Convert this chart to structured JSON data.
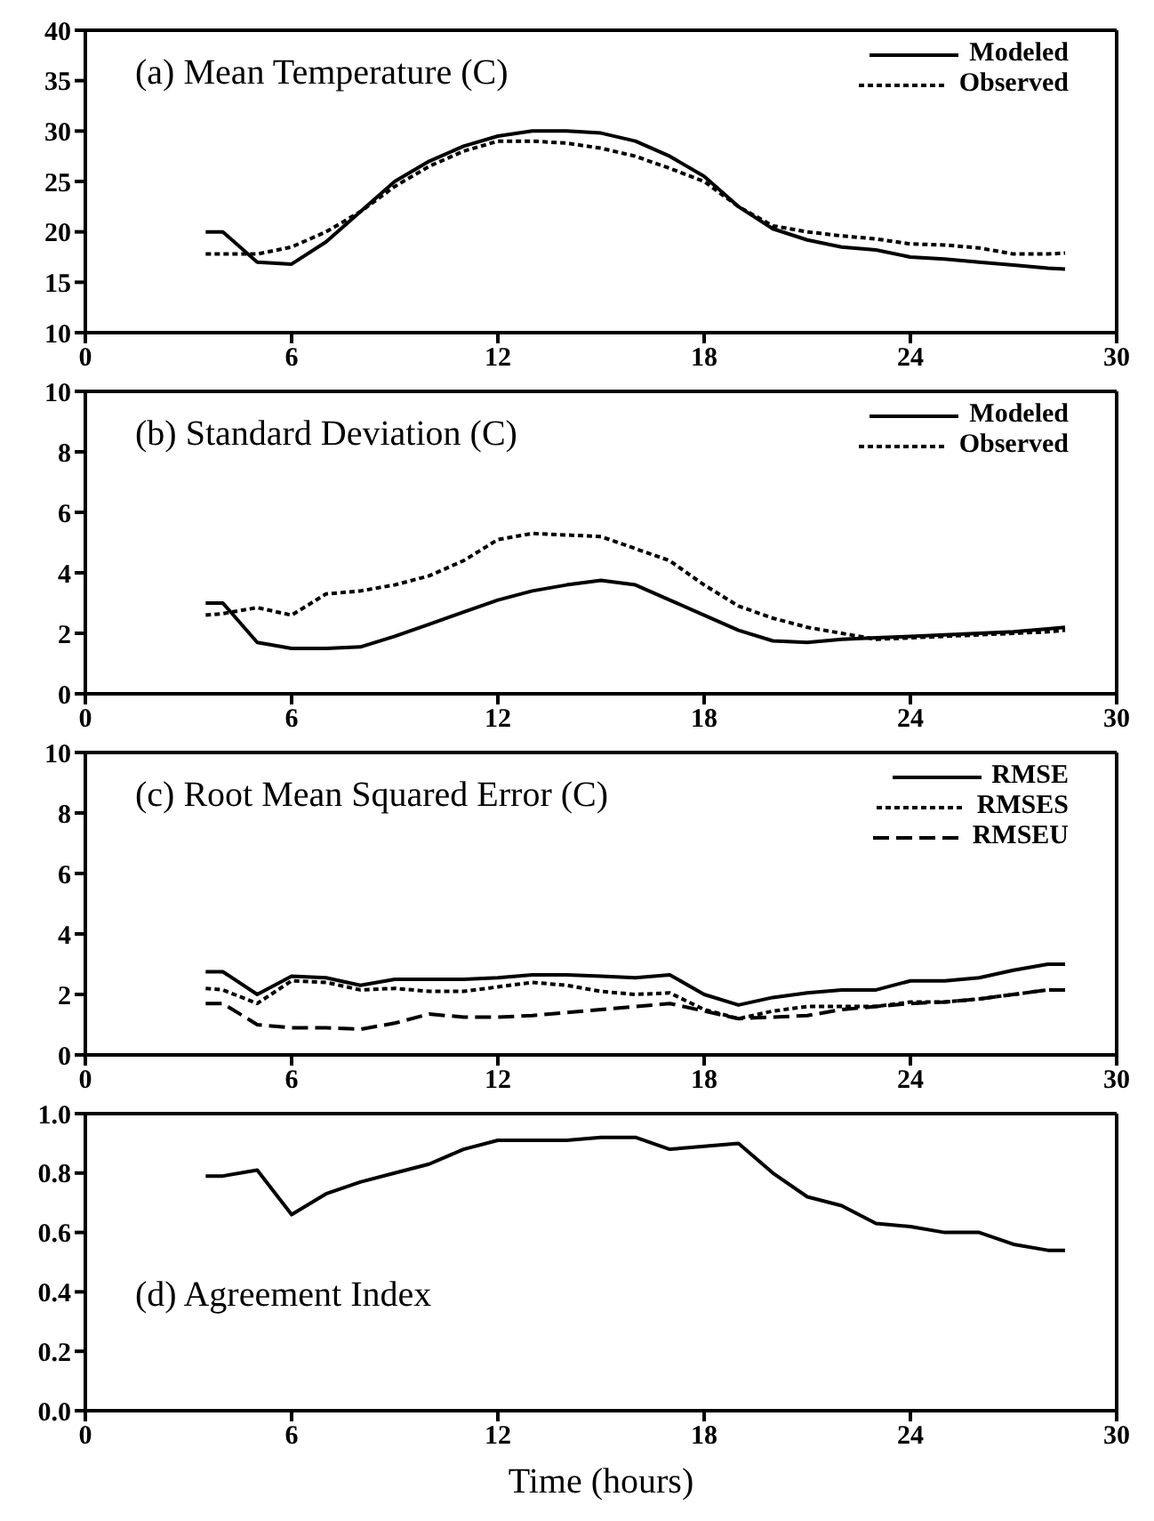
{
  "chart_data": [
    {
      "type": "line",
      "title": "(a) Mean Temperature (C)",
      "x": [
        3.5,
        4,
        5,
        6,
        7,
        8,
        9,
        10,
        11,
        12,
        13,
        14,
        15,
        16,
        17,
        18,
        19,
        20,
        21,
        22,
        23,
        24,
        25,
        26,
        27,
        28,
        28.5
      ],
      "xlim": [
        0,
        30
      ],
      "xticks": [
        0,
        6,
        12,
        18,
        24,
        30
      ],
      "ylim": [
        10,
        40
      ],
      "yticks": [
        10,
        15,
        20,
        25,
        30,
        35,
        40
      ],
      "legend": "top right",
      "grid": false,
      "marker": "none",
      "series": [
        {
          "name": "Modeled",
          "color": "#000000",
          "line_style": "solid",
          "values": [
            20,
            20,
            17,
            16.8,
            19,
            22,
            25,
            27,
            28.5,
            29.5,
            30,
            30,
            29.8,
            29,
            27.5,
            25.5,
            22.5,
            20.3,
            19.2,
            18.5,
            18.2,
            17.5,
            17.3,
            17,
            16.7,
            16.4,
            16.3
          ]
        },
        {
          "name": "Observed",
          "color": "#000000",
          "line_style": "dotted",
          "values": [
            17.8,
            17.8,
            17.8,
            18.5,
            20,
            22,
            24.5,
            26.5,
            28,
            29,
            29,
            28.8,
            28.3,
            27.5,
            26.3,
            25,
            22.5,
            20.6,
            20,
            19.6,
            19.3,
            18.8,
            18.7,
            18.4,
            17.8,
            17.8,
            17.9
          ]
        }
      ]
    },
    {
      "type": "line",
      "title": "(b) Standard Deviation (C)",
      "x": [
        3.5,
        4,
        5,
        6,
        7,
        8,
        9,
        10,
        11,
        12,
        13,
        14,
        15,
        16,
        17,
        18,
        19,
        20,
        21,
        22,
        23,
        24,
        25,
        26,
        27,
        28,
        28.5
      ],
      "xlim": [
        0,
        30
      ],
      "xticks": [
        0,
        6,
        12,
        18,
        24,
        30
      ],
      "ylim": [
        0,
        10
      ],
      "yticks": [
        0,
        2,
        4,
        6,
        8,
        10
      ],
      "legend": "top right",
      "grid": false,
      "marker": "none",
      "series": [
        {
          "name": "Modeled",
          "color": "#000000",
          "line_style": "solid",
          "values": [
            3,
            3,
            1.7,
            1.5,
            1.5,
            1.55,
            1.9,
            2.3,
            2.7,
            3.1,
            3.4,
            3.6,
            3.75,
            3.6,
            3.1,
            2.6,
            2.1,
            1.75,
            1.7,
            1.8,
            1.85,
            1.9,
            1.95,
            2,
            2.05,
            2.15,
            2.2
          ]
        },
        {
          "name": "Observed",
          "color": "#000000",
          "line_style": "dotted",
          "values": [
            2.6,
            2.65,
            2.85,
            2.6,
            3.3,
            3.4,
            3.6,
            3.9,
            4.4,
            5.1,
            5.3,
            5.25,
            5.2,
            4.8,
            4.4,
            3.6,
            2.9,
            2.5,
            2.2,
            2,
            1.8,
            1.85,
            1.9,
            1.95,
            2,
            2.05,
            2.1
          ]
        }
      ]
    },
    {
      "type": "line",
      "title": "(c) Root Mean Squared Error (C)",
      "x": [
        3.5,
        4,
        5,
        6,
        7,
        8,
        9,
        10,
        11,
        12,
        13,
        14,
        15,
        16,
        17,
        18,
        19,
        20,
        21,
        22,
        23,
        24,
        25,
        26,
        27,
        28,
        28.5
      ],
      "xlim": [
        0,
        30
      ],
      "xticks": [
        0,
        6,
        12,
        18,
        24,
        30
      ],
      "ylim": [
        0,
        10
      ],
      "yticks": [
        0,
        2,
        4,
        6,
        8,
        10
      ],
      "legend": "top right",
      "grid": false,
      "marker": "none",
      "series": [
        {
          "name": "RMSE",
          "color": "#000000",
          "line_style": "solid",
          "values": [
            2.75,
            2.75,
            2,
            2.6,
            2.55,
            2.3,
            2.5,
            2.5,
            2.5,
            2.55,
            2.65,
            2.65,
            2.6,
            2.55,
            2.65,
            2,
            1.65,
            1.9,
            2.05,
            2.15,
            2.15,
            2.45,
            2.45,
            2.55,
            2.8,
            3,
            3
          ]
        },
        {
          "name": "RMSES",
          "color": "#000000",
          "line_style": "dotted",
          "values": [
            2.2,
            2.15,
            1.7,
            2.45,
            2.4,
            2.15,
            2.2,
            2.1,
            2.1,
            2.25,
            2.4,
            2.3,
            2.1,
            2,
            2.05,
            1.5,
            1.2,
            1.45,
            1.6,
            1.6,
            1.6,
            1.75,
            1.75,
            1.85,
            2,
            2.15,
            2.15
          ]
        },
        {
          "name": "RMSEU",
          "color": "#000000",
          "line_style": "dashed",
          "values": [
            1.7,
            1.7,
            1,
            0.9,
            0.9,
            0.85,
            1.05,
            1.35,
            1.25,
            1.25,
            1.3,
            1.4,
            1.5,
            1.6,
            1.7,
            1.45,
            1.2,
            1.25,
            1.3,
            1.5,
            1.6,
            1.7,
            1.75,
            1.85,
            2,
            2.15,
            2.15
          ]
        }
      ]
    },
    {
      "type": "line",
      "title": "(d) Agreement Index",
      "xlabel": "Time (hours)",
      "x": [
        3.5,
        4,
        5,
        6,
        7,
        8,
        9,
        10,
        11,
        12,
        13,
        14,
        15,
        16,
        17,
        18,
        19,
        20,
        21,
        22,
        23,
        24,
        25,
        26,
        27,
        28,
        28.5
      ],
      "xlim": [
        0,
        30
      ],
      "xticks": [
        0,
        6,
        12,
        18,
        24,
        30
      ],
      "ylim": [
        0,
        1
      ],
      "yticks": [
        {
          "value": 0,
          "label": "0.0"
        },
        0.2,
        0.4,
        0.6,
        0.8,
        {
          "value": 1,
          "label": "1.0"
        }
      ],
      "legend": false,
      "grid": false,
      "marker": "none",
      "series": [
        {
          "color": "#000000",
          "line_style": "solid",
          "values": [
            0.79,
            0.79,
            0.81,
            0.66,
            0.73,
            0.77,
            0.8,
            0.83,
            0.88,
            0.91,
            0.91,
            0.91,
            0.92,
            0.92,
            0.88,
            0.89,
            0.9,
            0.8,
            0.72,
            0.69,
            0.63,
            0.62,
            0.6,
            0.6,
            0.56,
            0.54,
            0.54
          ]
        }
      ]
    }
  ]
}
